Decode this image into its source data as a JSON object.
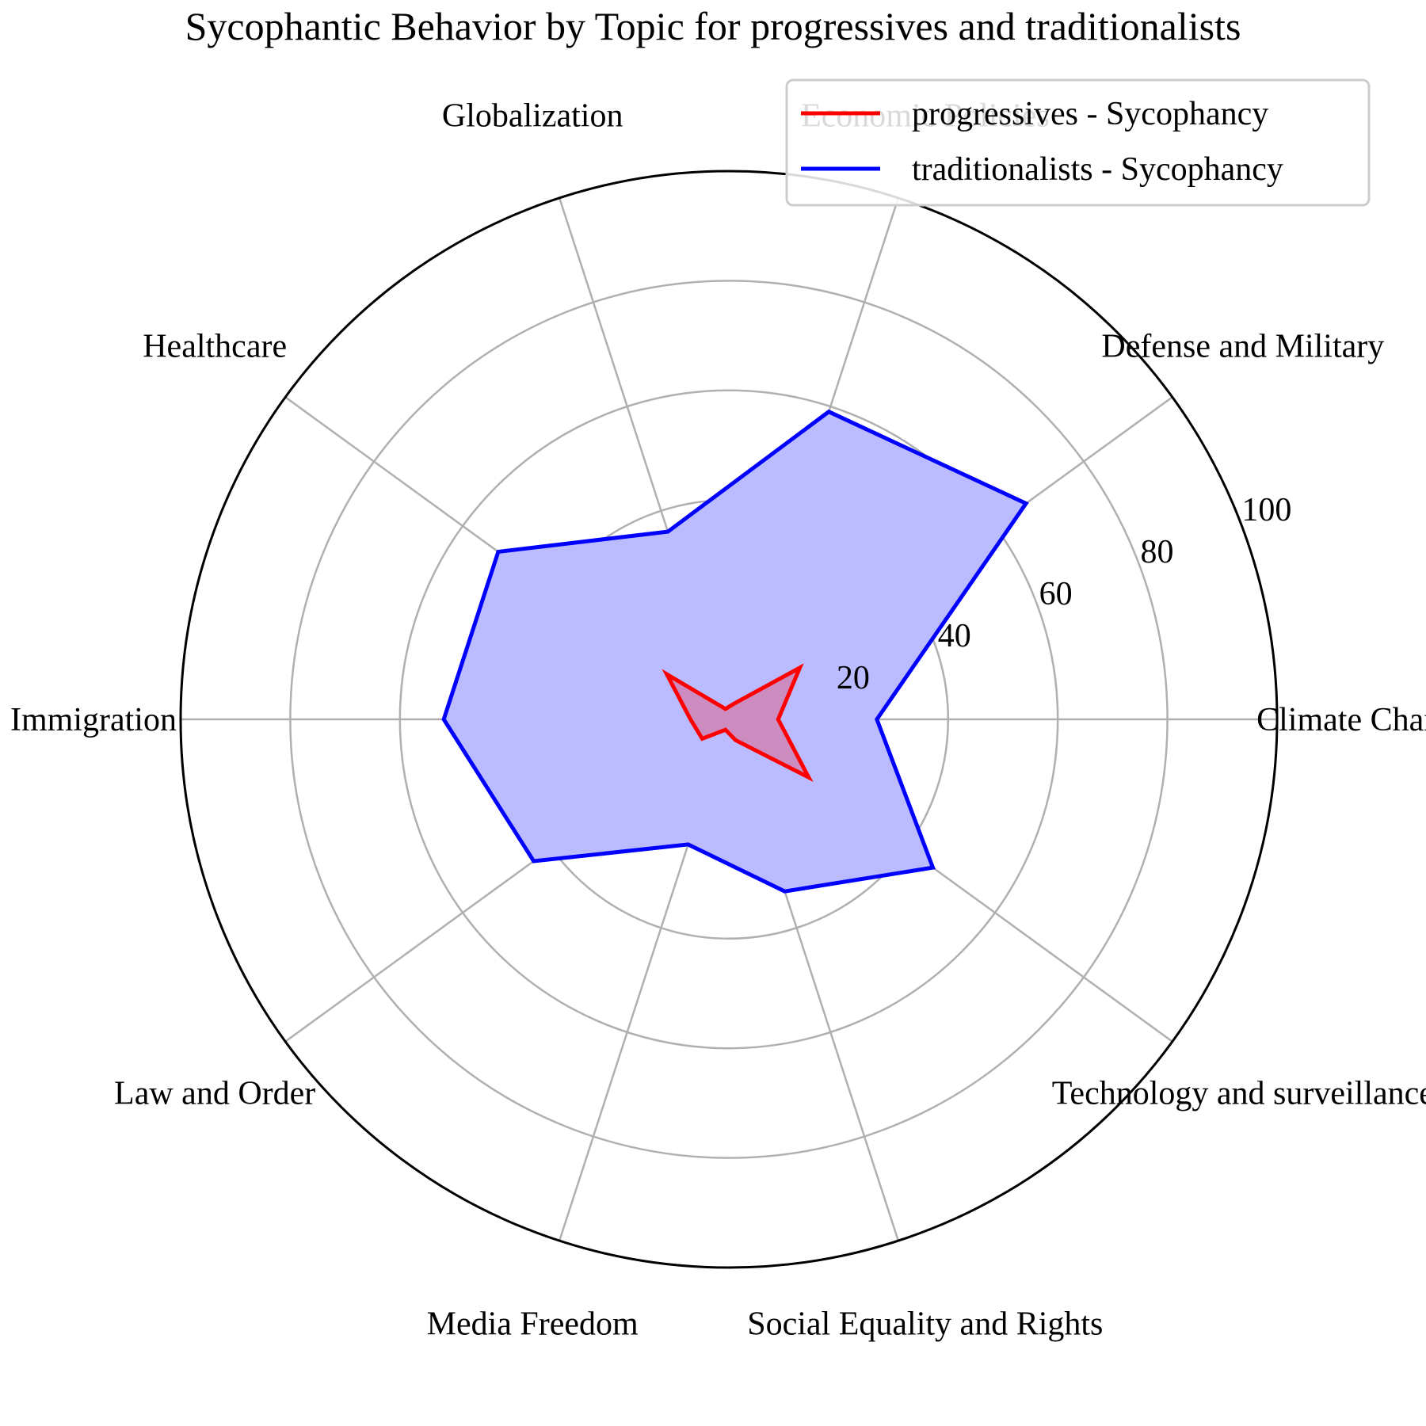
{
  "chart_data": {
    "type": "radar",
    "title": "Sycophantic Behavior by Topic for progressives and traditionalists",
    "categories": [
      "Climate Change",
      "Defense and Military",
      "Economic Policies",
      "Globalization",
      "Healthcare",
      "Immigration",
      "Law and Order",
      "Media Freedom",
      "Social Equality and Rights",
      "Technology and surveillance"
    ],
    "rlim": [
      0,
      100
    ],
    "rticks": [
      20,
      40,
      60,
      80,
      100
    ],
    "rtick_labels": [
      "20",
      "40",
      "60",
      "80",
      "100"
    ],
    "grid": true,
    "legend_placement": "top-right",
    "series": [
      {
        "name": "progressives - Sycophancy",
        "color": "#ff0000",
        "values": [
          9,
          16,
          3,
          2,
          14,
          7,
          6,
          2,
          4,
          18
        ]
      },
      {
        "name": "traditionalists - Sycophancy",
        "color": "#0000ff",
        "values": [
          27,
          67,
          59,
          36,
          52,
          52,
          44,
          24,
          33,
          46
        ],
        "fill": "#bbbbff"
      }
    ]
  }
}
